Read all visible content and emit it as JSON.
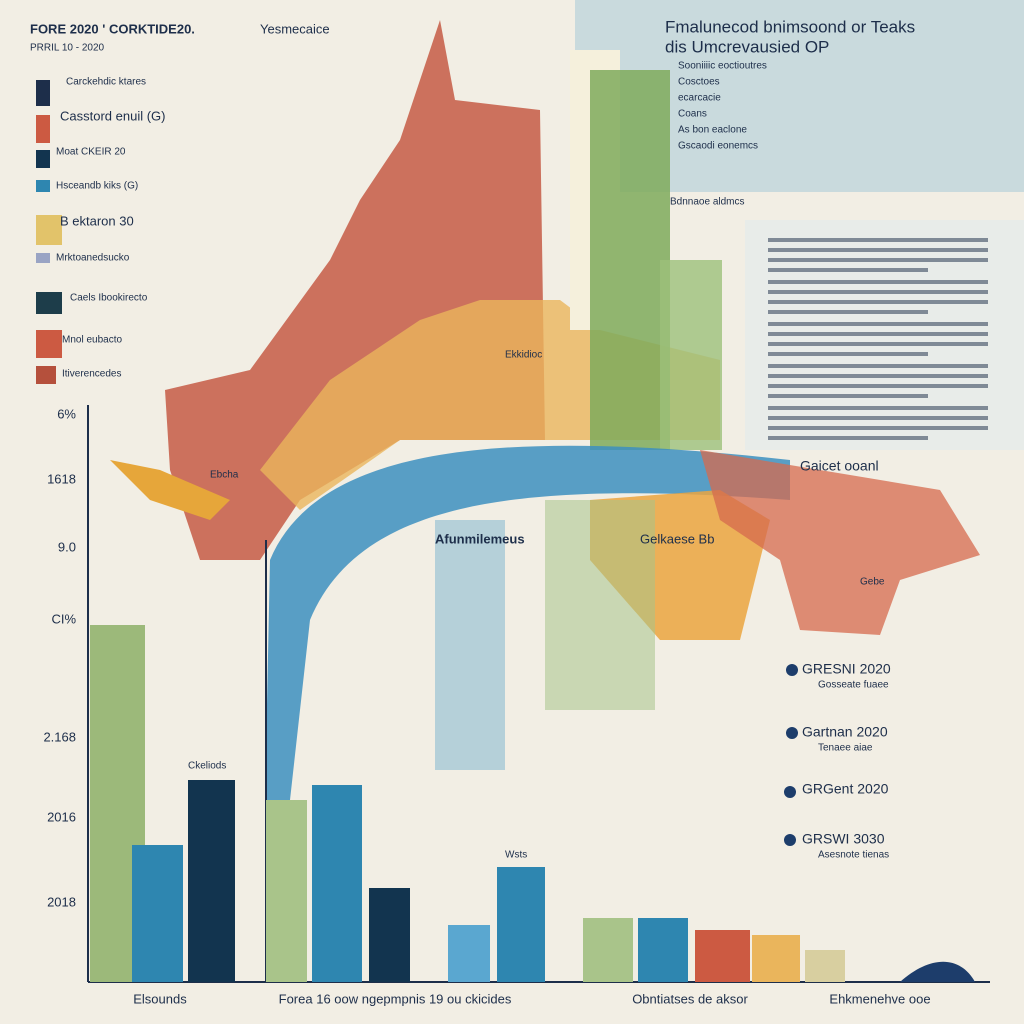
{
  "header": {
    "title": "FORE 2020 ' CORKTIDE20.",
    "tagline": "Yesmecaice",
    "subtitle": "PRRIL 10 - 2020"
  },
  "legend": [
    "Carckehdic ktares",
    "Casstord enuil (G)",
    "Moat CKEIR 20",
    "Hsceandb kiks (G)",
    "B ektaron 30",
    "Mrktoanedsucko",
    "Caels Ibookirecto",
    "Mnol eubacto",
    "Itiverencedes"
  ],
  "panel": {
    "title": "Fmalunecod bnimsoond or Teaks",
    "subtitle": "dis Umcrevausied OP",
    "items": [
      "Sooniiiic eoctioutres",
      "Cosctoes",
      "ecarcacie",
      "Coans",
      "As bon eaclone",
      "Gscaodi eonemcs"
    ],
    "note": "Bdnnaoe aldmcs"
  },
  "y_labels": [
    "6%",
    "1618",
    "9.0",
    "CI%",
    "2.168",
    "2016",
    "2018"
  ],
  "x_labels": [
    "Elsounds",
    "Forea 16 oow ngepmpnis 19 ou ckicides",
    "Obntiatses de aksor",
    "Ehkmenehve ooe"
  ],
  "callouts": [
    {
      "title": "GRESNI 2020",
      "sub": "Gosseate fuaee"
    },
    {
      "title": "Gartnan 2020",
      "sub": "Tenaee aiae"
    },
    {
      "title": "GRGent 2020",
      "sub": ""
    },
    {
      "title": "GRSWI 3030",
      "sub": "Asesnote tienas"
    }
  ],
  "annotations": [
    "Gaicet ooanl",
    "Gebe",
    "Afunmilemeus",
    "Gelkaese Bb",
    "Ebcha",
    "Ekkidioc",
    "Ckeliods",
    "Wsts"
  ]
}
